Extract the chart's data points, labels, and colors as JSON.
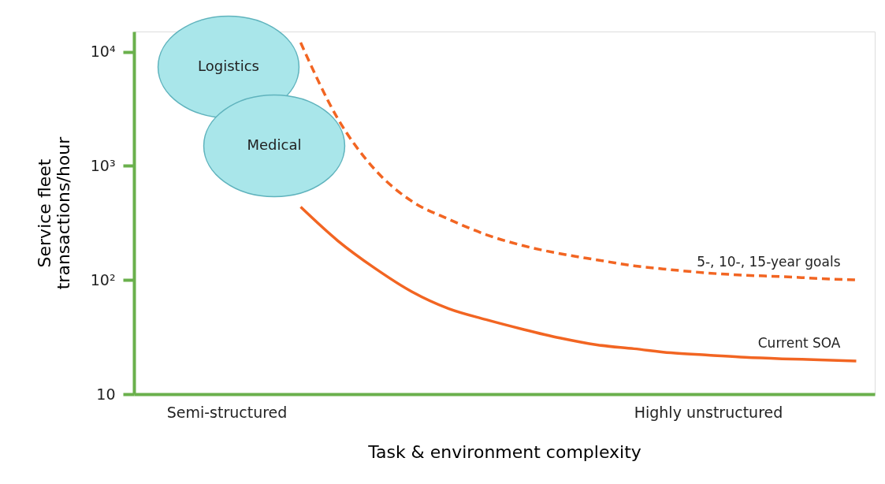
{
  "chart_data": {
    "type": "line",
    "xlabel": "Task & environment complexity",
    "ylabel": "Service fleet\ntransactions/hour",
    "log": "y",
    "ylim": [
      10,
      15000
    ],
    "yticks": [
      10,
      {
        "value": 100,
        "label": "10²"
      },
      {
        "value": 1000,
        "label": "10³"
      },
      {
        "value": 10000,
        "label": "10⁴"
      }
    ],
    "categories": [
      null,
      null,
      "Semi-structured",
      null,
      null,
      null,
      null,
      null,
      null,
      null,
      null,
      null,
      null,
      null,
      null,
      "Highly unstructured",
      null,
      null,
      null,
      null
    ],
    "grid": false,
    "legend": false,
    "marker": "none",
    "series": [
      {
        "name": "Current SOA",
        "color": "#f26522",
        "line_style": "solid",
        "values": [
          null,
          null,
          null,
          null,
          436,
          221,
          127,
          79,
          56,
          45,
          37,
          31,
          27,
          25,
          23,
          22,
          21,
          20.4,
          20,
          19.5
        ]
      },
      {
        "name": "5-, 10-, 15-year goals",
        "color": "#f26522",
        "line_style": "dashed",
        "values": [
          null,
          null,
          null,
          null,
          12000,
          2600,
          930,
          490,
          340,
          250,
          200,
          170,
          150,
          133,
          123,
          115,
          110,
          107,
          103,
          100
        ]
      }
    ],
    "annotations": [
      "Logistics",
      "Medical"
    ]
  }
}
